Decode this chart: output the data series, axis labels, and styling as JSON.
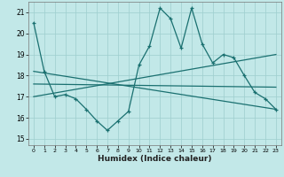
{
  "xlabel": "Humidex (Indice chaleur)",
  "xlim": [
    -0.5,
    23.5
  ],
  "ylim": [
    14.7,
    21.5
  ],
  "yticks": [
    15,
    16,
    17,
    18,
    19,
    20,
    21
  ],
  "xticks": [
    0,
    1,
    2,
    3,
    4,
    5,
    6,
    7,
    8,
    9,
    10,
    11,
    12,
    13,
    14,
    15,
    16,
    17,
    18,
    19,
    20,
    21,
    22,
    23
  ],
  "bg_color": "#c2e8e8",
  "grid_color": "#9ecece",
  "line_color": "#1a7070",
  "main_line": {
    "x": [
      0,
      1,
      2,
      3,
      4,
      5,
      6,
      7,
      8,
      9,
      10,
      11,
      12,
      13,
      14,
      15,
      16,
      17,
      18,
      19,
      20,
      21,
      22,
      23
    ],
    "y": [
      20.5,
      18.2,
      17.0,
      17.1,
      16.9,
      16.4,
      15.85,
      15.4,
      15.85,
      16.3,
      18.5,
      19.4,
      21.2,
      20.7,
      19.3,
      21.2,
      19.5,
      18.6,
      19.0,
      18.85,
      18.0,
      17.2,
      16.9,
      16.4
    ]
  },
  "trend_line1": {
    "x": [
      0,
      23
    ],
    "y": [
      17.0,
      19.0
    ]
  },
  "trend_line2": {
    "x": [
      0,
      23
    ],
    "y": [
      17.6,
      17.45
    ]
  },
  "trend_line3": {
    "x": [
      0,
      23
    ],
    "y": [
      18.2,
      16.4
    ]
  }
}
